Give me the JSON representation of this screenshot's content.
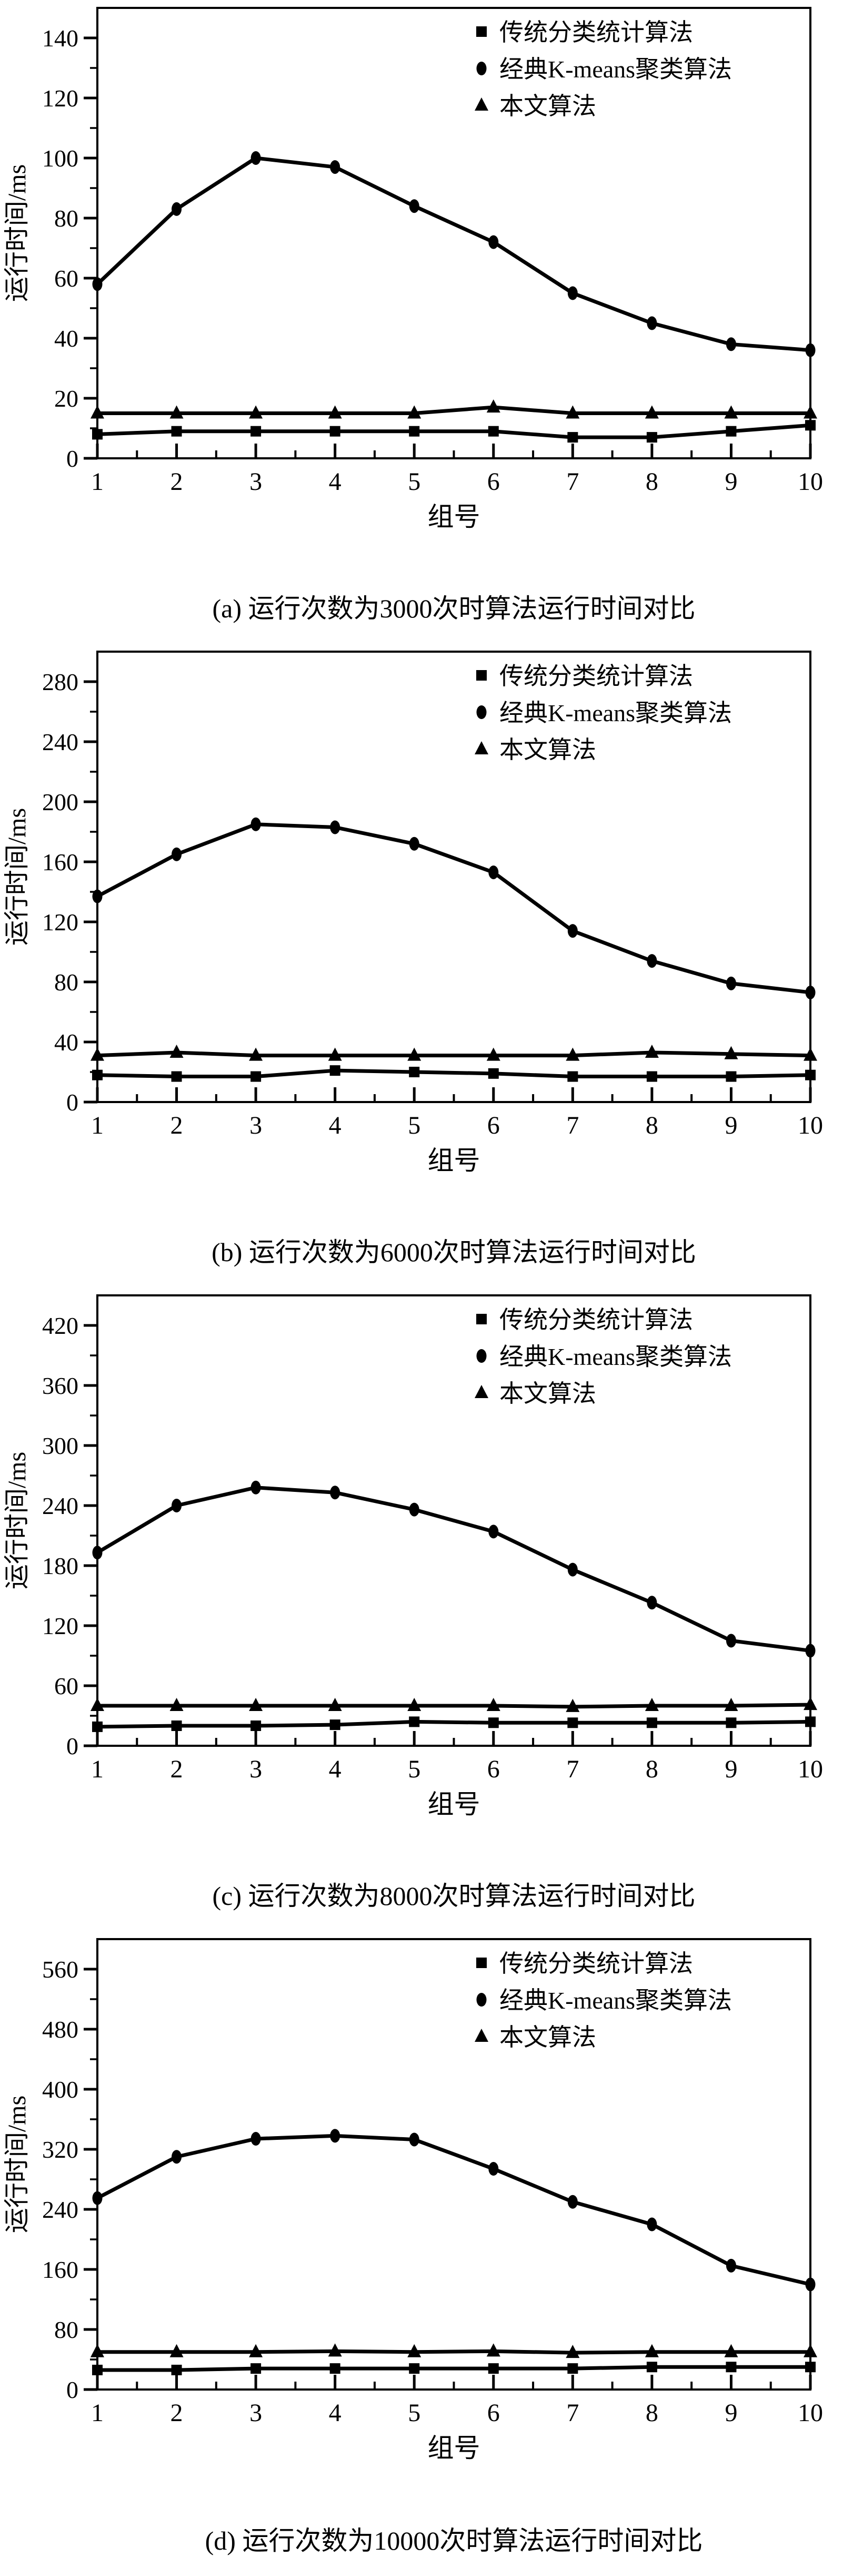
{
  "colors": {
    "ink": "#000000",
    "background": "#ffffff"
  },
  "axis_titles": {
    "y": "运行时间/ms",
    "x": "组号"
  },
  "legend": [
    {
      "marker": "square",
      "label": "传统分类统计算法"
    },
    {
      "marker": "circle",
      "label": "经典K-means聚类算法"
    },
    {
      "marker": "triangle",
      "label": "本文算法"
    }
  ],
  "chart_data": [
    {
      "type": "line",
      "panel": "a",
      "title": "(a) 运行次数为3000次时算法运行时间对比",
      "xlabel": "组号",
      "ylabel": "运行时间/ms",
      "x": [
        1,
        2,
        3,
        4,
        5,
        6,
        7,
        8,
        9,
        10
      ],
      "xlim": [
        1,
        10
      ],
      "ylim": [
        0,
        150
      ],
      "y_major_ticks": [
        0,
        20,
        40,
        60,
        80,
        100,
        120,
        140
      ],
      "y_minor_step": 10,
      "grid": false,
      "legend_position": "top-right-inside",
      "series": [
        {
          "name": "传统分类统计算法",
          "marker": "square",
          "values": [
            8,
            9,
            9,
            9,
            9,
            9,
            7,
            7,
            9,
            11
          ]
        },
        {
          "name": "经典K-means聚类算法",
          "marker": "circle",
          "values": [
            58,
            83,
            100,
            97,
            84,
            72,
            55,
            45,
            38,
            36
          ]
        },
        {
          "name": "本文算法",
          "marker": "triangle",
          "values": [
            15,
            15,
            15,
            15,
            15,
            17,
            15,
            15,
            15,
            15
          ]
        }
      ]
    },
    {
      "type": "line",
      "panel": "b",
      "title": "(b) 运行次数为6000次时算法运行时间对比",
      "xlabel": "组号",
      "ylabel": "运行时间/ms",
      "x": [
        1,
        2,
        3,
        4,
        5,
        6,
        7,
        8,
        9,
        10
      ],
      "xlim": [
        1,
        10
      ],
      "ylim": [
        0,
        300
      ],
      "y_major_ticks": [
        0,
        40,
        80,
        120,
        160,
        200,
        240,
        280
      ],
      "y_minor_step": 20,
      "grid": false,
      "legend_position": "top-right-inside",
      "series": [
        {
          "name": "传统分类统计算法",
          "marker": "square",
          "values": [
            18,
            17,
            17,
            21,
            20,
            19,
            17,
            17,
            17,
            18
          ]
        },
        {
          "name": "经典K-means聚类算法",
          "marker": "circle",
          "values": [
            137,
            165,
            185,
            183,
            172,
            153,
            114,
            94,
            79,
            73
          ]
        },
        {
          "name": "本文算法",
          "marker": "triangle",
          "values": [
            31,
            33,
            31,
            31,
            31,
            31,
            31,
            33,
            32,
            31
          ]
        }
      ]
    },
    {
      "type": "line",
      "panel": "c",
      "title": "(c) 运行次数为8000次时算法运行时间对比",
      "xlabel": "组号",
      "ylabel": "运行时间/ms",
      "x": [
        1,
        2,
        3,
        4,
        5,
        6,
        7,
        8,
        9,
        10
      ],
      "xlim": [
        1,
        10
      ],
      "ylim": [
        0,
        450
      ],
      "y_major_ticks": [
        0,
        60,
        120,
        180,
        240,
        300,
        360,
        420
      ],
      "y_minor_step": 30,
      "grid": false,
      "legend_position": "top-right-inside",
      "series": [
        {
          "name": "传统分类统计算法",
          "marker": "square",
          "values": [
            19,
            20,
            20,
            21,
            24,
            23,
            23,
            23,
            23,
            24
          ]
        },
        {
          "name": "经典K-means聚类算法",
          "marker": "circle",
          "values": [
            193,
            240,
            258,
            253,
            236,
            214,
            176,
            143,
            105,
            95
          ]
        },
        {
          "name": "本文算法",
          "marker": "triangle",
          "values": [
            40,
            40,
            40,
            40,
            40,
            40,
            39,
            40,
            40,
            41
          ]
        }
      ]
    },
    {
      "type": "line",
      "panel": "d",
      "title": "(d) 运行次数为10000次时算法运行时间对比",
      "xlabel": "组号",
      "ylabel": "运行时间/ms",
      "x": [
        1,
        2,
        3,
        4,
        5,
        6,
        7,
        8,
        9,
        10
      ],
      "xlim": [
        1,
        10
      ],
      "ylim": [
        0,
        600
      ],
      "y_major_ticks": [
        0,
        80,
        160,
        240,
        320,
        400,
        480,
        560
      ],
      "y_minor_step": 40,
      "grid": false,
      "legend_position": "top-right-inside",
      "series": [
        {
          "name": "传统分类统计算法",
          "marker": "square",
          "values": [
            26,
            26,
            28,
            28,
            28,
            28,
            28,
            30,
            30,
            30
          ]
        },
        {
          "name": "经典K-means聚类算法",
          "marker": "circle",
          "values": [
            255,
            310,
            334,
            338,
            333,
            294,
            250,
            220,
            165,
            140
          ]
        },
        {
          "name": "本文算法",
          "marker": "triangle",
          "values": [
            50,
            50,
            50,
            51,
            50,
            51,
            49,
            50,
            50,
            50
          ]
        }
      ]
    }
  ]
}
